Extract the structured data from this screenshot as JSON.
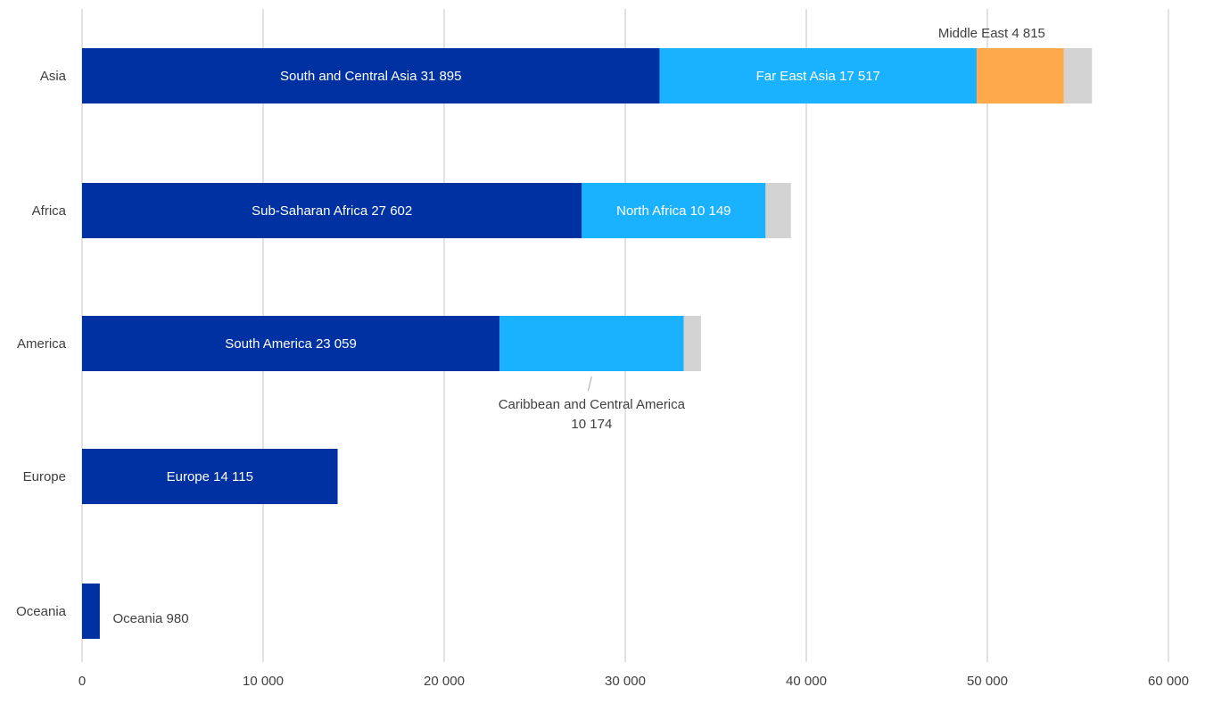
{
  "chart_data": {
    "type": "bar",
    "orientation": "horizontal",
    "stacked": true,
    "title": "",
    "xlabel": "",
    "ylabel": "",
    "xlim": [
      0,
      60000
    ],
    "x_ticks": [
      "0",
      "10 000",
      "20 000",
      "30 000",
      "40 000",
      "50 000",
      "60 000"
    ],
    "x_tick_values": [
      0,
      10000,
      20000,
      30000,
      40000,
      50000,
      60000
    ],
    "grid": "vertical",
    "legend": "none",
    "categories": [
      {
        "name": "Asia",
        "segments": [
          {
            "label": "South and Central Asia 31 895",
            "value": 31895,
            "color": "#0031a3",
            "text_color": "#ffffff"
          },
          {
            "label": "Far East Asia 17 517",
            "value": 17517,
            "color": "#1ab2ff",
            "text_color": "#ffffff"
          },
          {
            "label": "Middle East 4 815",
            "value": 4815,
            "color": "#ffa94d",
            "text_color": "#404040"
          },
          {
            "label": "",
            "value": 1550,
            "color": "#d3d3d3",
            "text_color": "#404040"
          }
        ]
      },
      {
        "name": "Africa",
        "segments": [
          {
            "label": "Sub-Saharan Africa 27 602",
            "value": 27602,
            "color": "#0031a3",
            "text_color": "#ffffff"
          },
          {
            "label": "North Africa 10 149",
            "value": 10149,
            "color": "#1ab2ff",
            "text_color": "#ffffff"
          },
          {
            "label": "",
            "value": 1400,
            "color": "#d3d3d3",
            "text_color": "#404040"
          }
        ]
      },
      {
        "name": "America",
        "segments": [
          {
            "label": "South America 23 059",
            "value": 23059,
            "color": "#0031a3",
            "text_color": "#ffffff"
          },
          {
            "label": "Caribbean and Central America 10 174",
            "label_lines": [
              "Caribbean and Central America",
              "10 174"
            ],
            "value": 10174,
            "color": "#1ab2ff",
            "text_color": "#404040"
          },
          {
            "label": "",
            "value": 950,
            "color": "#d3d3d3",
            "text_color": "#404040"
          }
        ]
      },
      {
        "name": "Europe",
        "segments": [
          {
            "label": "Europe 14 115",
            "value": 14115,
            "color": "#0031a3",
            "text_color": "#ffffff"
          }
        ]
      },
      {
        "name": "Oceania",
        "segments": [
          {
            "label": "Oceania 980",
            "value": 980,
            "color": "#0031a3",
            "text_color": "#404040"
          }
        ]
      }
    ]
  }
}
